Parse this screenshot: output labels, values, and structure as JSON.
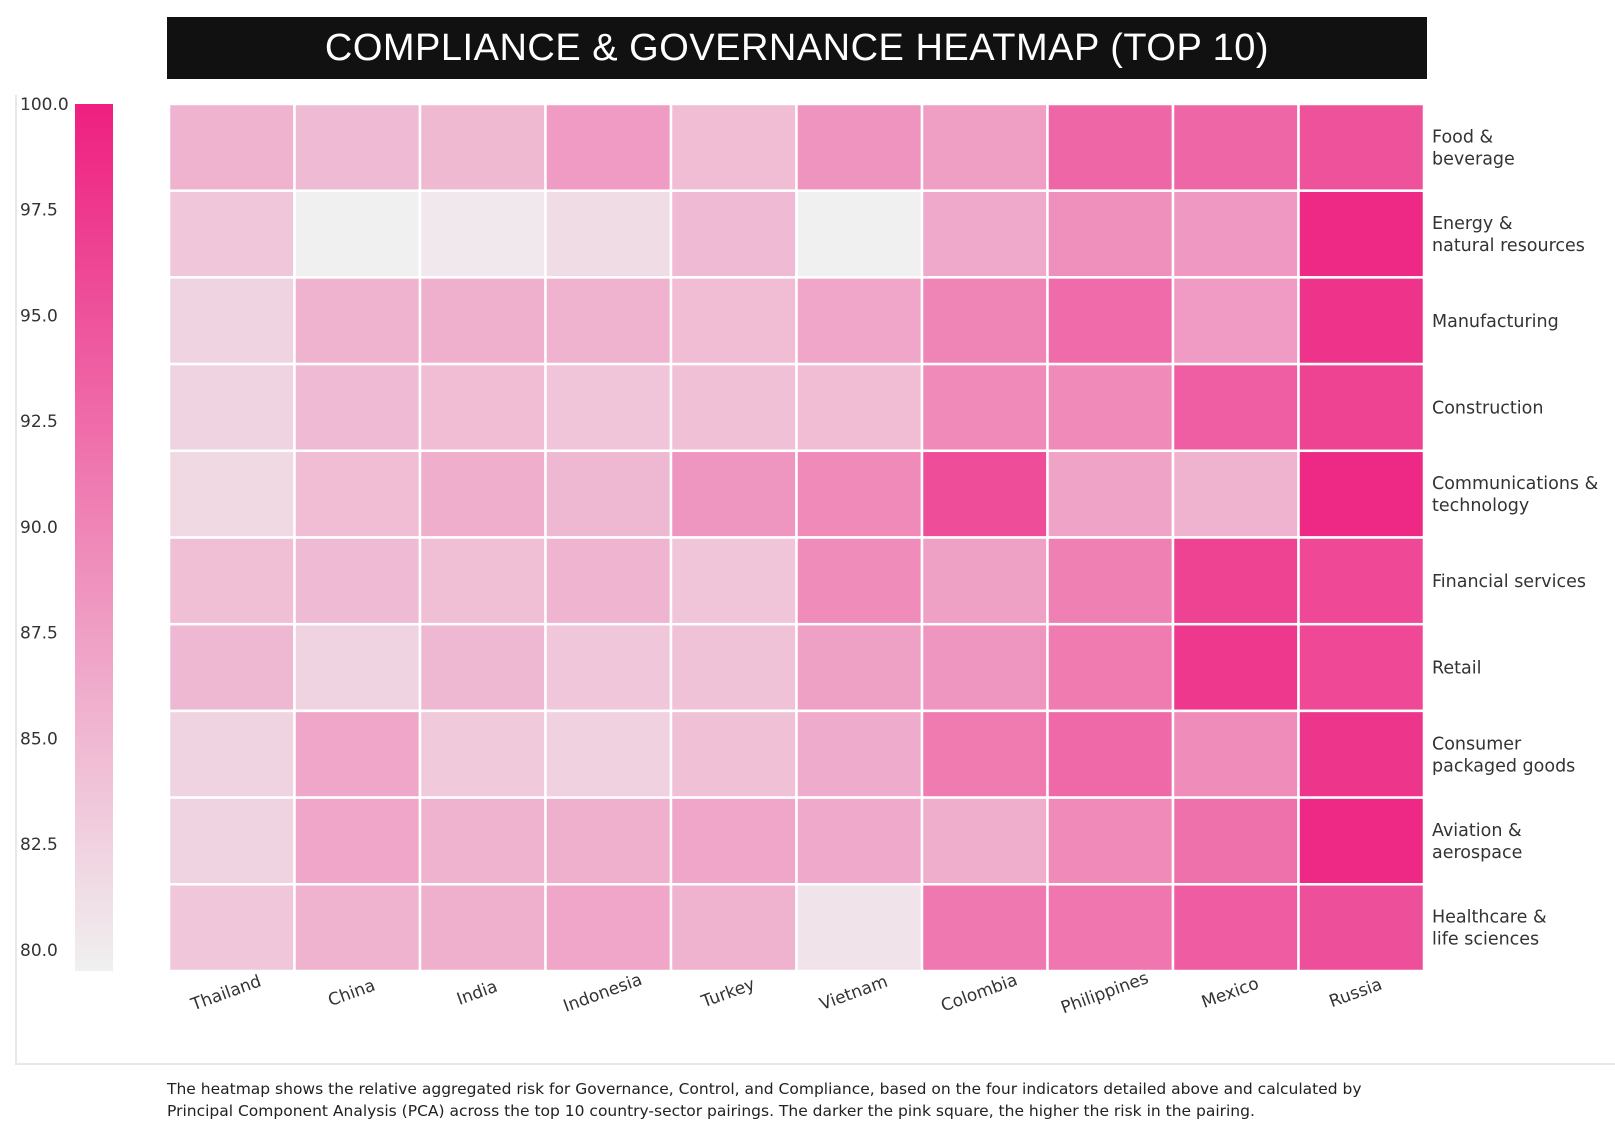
{
  "title": "COMPLIANCE & GOVERNANCE HEATMAP (TOP 10)",
  "caption": {
    "line1": "The heatmap shows the relative aggregated risk for Governance, Control, and Compliance, based on the four indicators detailed above and calculated by",
    "line2": "Principal Component Analysis (PCA) across the top 10 country-sector pairings. The darker the pink square, the higher the risk in the pairing."
  },
  "colors": {
    "low": "#f0f0f0",
    "high": "#ee1f80",
    "title_bg": "#111111"
  },
  "chart_data": {
    "type": "heatmap",
    "countries": [
      "Thailand",
      "China",
      "India",
      "Indonesia",
      "Turkey",
      "Vietnam",
      "Colombia",
      "Philippines",
      "Mexico",
      "Russia"
    ],
    "sectors": [
      "Food & beverage",
      "Energy & natural resources",
      "Manufacturing",
      "Construction",
      "Communications & technology",
      "Financial services",
      "Retail",
      "Consumer packaged goods",
      "Aviation & aerospace",
      "Healthcare & life sciences"
    ],
    "sector_label_lines": [
      [
        "Food &",
        "beverage"
      ],
      [
        "Energy &",
        "natural resources"
      ],
      [
        "Manufacturing"
      ],
      [
        "Construction"
      ],
      [
        "Communications &",
        "technology"
      ],
      [
        "Financial services"
      ],
      [
        "Retail"
      ],
      [
        "Consumer",
        "packaged goods"
      ],
      [
        "Aviation &",
        "aerospace"
      ],
      [
        "Healthcare &",
        "life sciences"
      ]
    ],
    "values": [
      [
        85.5,
        84.8,
        84.9,
        87.8,
        84.5,
        88.5,
        87.5,
        93.0,
        93.0,
        95.0
      ],
      [
        83.5,
        79.5,
        80.3,
        81.5,
        84.8,
        79.3,
        86.5,
        89.0,
        88.0,
        99.0
      ],
      [
        82.3,
        85.5,
        85.8,
        85.5,
        84.5,
        86.8,
        90.0,
        92.5,
        87.8,
        98.0
      ],
      [
        82.3,
        84.7,
        84.5,
        83.8,
        84.2,
        84.5,
        89.5,
        89.5,
        93.8,
        96.5
      ],
      [
        81.8,
        84.5,
        86.0,
        85.0,
        88.3,
        89.5,
        95.5,
        87.0,
        85.5,
        99.0
      ],
      [
        84.3,
        84.8,
        84.4,
        85.3,
        83.8,
        89.3,
        87.3,
        90.5,
        96.5,
        96.0
      ],
      [
        85.0,
        82.3,
        85.0,
        83.5,
        84.0,
        87.3,
        88.3,
        91.0,
        97.5,
        96.0
      ],
      [
        82.3,
        86.8,
        83.3,
        82.5,
        84.2,
        86.3,
        91.0,
        92.8,
        89.3,
        97.8
      ],
      [
        82.3,
        86.8,
        85.5,
        85.8,
        86.8,
        86.5,
        86.0,
        89.5,
        92.0,
        99.0
      ],
      [
        83.5,
        85.5,
        85.8,
        86.8,
        85.5,
        80.8,
        91.3,
        91.5,
        94.0,
        95.3
      ]
    ],
    "colorbar": {
      "min": 79.5,
      "max": 100.0,
      "ticks": [
        100.0,
        97.5,
        95.0,
        92.5,
        90.0,
        87.5,
        85.0,
        82.5,
        80.0
      ],
      "tick_labels": [
        "100.0",
        "97.5",
        "95.0",
        "92.5",
        "90.0",
        "87.5",
        "85.0",
        "82.5",
        "80.0"
      ]
    },
    "xlabel": "",
    "ylabel": ""
  }
}
